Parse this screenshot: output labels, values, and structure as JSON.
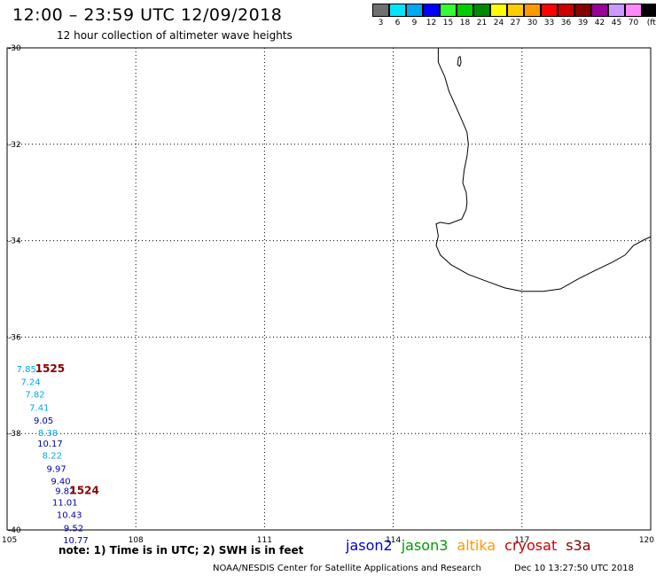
{
  "header": {
    "title": "12:00 – 23:59 UTC 12/09/2018",
    "subtitle": "12 hour collection of altimeter wave heights"
  },
  "legend": {
    "unit": "(ft)",
    "items": [
      {
        "label": "3",
        "color": "#707070"
      },
      {
        "label": "6",
        "color": "#00e5ff"
      },
      {
        "label": "9",
        "color": "#00a8f0"
      },
      {
        "label": "12",
        "color": "#0000ff"
      },
      {
        "label": "15",
        "color": "#33ff33"
      },
      {
        "label": "18",
        "color": "#00cc00"
      },
      {
        "label": "21",
        "color": "#008800"
      },
      {
        "label": "24",
        "color": "#ffff00"
      },
      {
        "label": "27",
        "color": "#ffcc00"
      },
      {
        "label": "30",
        "color": "#ff9900"
      },
      {
        "label": "33",
        "color": "#ff0000"
      },
      {
        "label": "36",
        "color": "#cc0000"
      },
      {
        "label": "39",
        "color": "#880000"
      },
      {
        "label": "42",
        "color": "#990099"
      },
      {
        "label": "45",
        "color": "#cc99ff"
      },
      {
        "label": "70",
        "color": "#ff88ff"
      },
      {
        "label": "",
        "color": "#000000"
      }
    ]
  },
  "axes": {
    "lon_ticks": [
      "105",
      "108",
      "111",
      "114",
      "117",
      "120"
    ],
    "lat_ticks": [
      "-30",
      "-32",
      "-34",
      "-36",
      "-38",
      "-40"
    ]
  },
  "observations": [
    {
      "value": "7.85",
      "lon": 105.45,
      "lat": -36.65,
      "color": "#00a8f0"
    },
    {
      "value": "7.24",
      "lon": 105.55,
      "lat": -36.92,
      "color": "#00a8f0"
    },
    {
      "value": "7.82",
      "lon": 105.65,
      "lat": -37.18,
      "color": "#00a8f0"
    },
    {
      "value": "7.41",
      "lon": 105.75,
      "lat": -37.45,
      "color": "#00a8f0"
    },
    {
      "value": "9.05",
      "lon": 105.85,
      "lat": -37.72,
      "color": "#0000aa"
    },
    {
      "value": "8.38",
      "lon": 105.95,
      "lat": -37.98,
      "color": "#00a8f0"
    },
    {
      "value": "10.17",
      "lon": 106.0,
      "lat": -38.2,
      "color": "#0000aa"
    },
    {
      "value": "8.22",
      "lon": 106.05,
      "lat": -38.45,
      "color": "#00a8f0"
    },
    {
      "value": "9.97",
      "lon": 106.15,
      "lat": -38.72,
      "color": "#0000aa"
    },
    {
      "value": "9.40",
      "lon": 106.25,
      "lat": -38.98,
      "color": "#0000aa"
    },
    {
      "value": "9.82",
      "lon": 106.35,
      "lat": -39.18,
      "color": "#0000aa"
    },
    {
      "value": "11.01",
      "lon": 106.35,
      "lat": -39.42,
      "color": "#0000aa"
    },
    {
      "value": "10.43",
      "lon": 106.45,
      "lat": -39.68,
      "color": "#0000aa"
    },
    {
      "value": "9.52",
      "lon": 106.55,
      "lat": -39.95,
      "color": "#0000aa"
    },
    {
      "value": "10.77",
      "lon": 106.6,
      "lat": -40.2,
      "color": "#0000aa"
    }
  ],
  "pass_labels": [
    {
      "label": "1525",
      "lon": 106.0,
      "lat": -36.65,
      "color": "#880000"
    },
    {
      "label": "1524",
      "lon": 106.8,
      "lat": -39.18,
      "color": "#880000"
    }
  ],
  "coastline": {
    "mainland": [
      [
        115.05,
        -30.0
      ],
      [
        115.05,
        -30.3
      ],
      [
        115.2,
        -30.6
      ],
      [
        115.3,
        -30.9
      ],
      [
        115.45,
        -31.2
      ],
      [
        115.6,
        -31.5
      ],
      [
        115.72,
        -31.75
      ],
      [
        115.75,
        -32.0
      ],
      [
        115.72,
        -32.25
      ],
      [
        115.65,
        -32.55
      ],
      [
        115.62,
        -32.8
      ],
      [
        115.7,
        -33.0
      ],
      [
        115.72,
        -33.2
      ],
      [
        115.7,
        -33.35
      ],
      [
        115.6,
        -33.55
      ],
      [
        115.3,
        -33.65
      ],
      [
        115.1,
        -33.62
      ],
      [
        115.0,
        -33.65
      ],
      [
        115.05,
        -33.9
      ],
      [
        115.0,
        -34.1
      ],
      [
        115.1,
        -34.3
      ],
      [
        115.35,
        -34.5
      ],
      [
        115.75,
        -34.7
      ],
      [
        116.2,
        -34.85
      ],
      [
        116.6,
        -34.98
      ],
      [
        117.0,
        -35.05
      ],
      [
        117.5,
        -35.05
      ],
      [
        117.9,
        -35.0
      ],
      [
        118.3,
        -34.8
      ],
      [
        118.7,
        -34.62
      ],
      [
        119.1,
        -34.45
      ],
      [
        119.4,
        -34.3
      ],
      [
        119.6,
        -34.1
      ],
      [
        119.85,
        -33.98
      ],
      [
        120.0,
        -33.92
      ]
    ],
    "islands": [
      [
        [
          115.52,
          -30.2
        ],
        [
          115.56,
          -30.18
        ],
        [
          115.58,
          -30.3
        ],
        [
          115.55,
          -30.38
        ],
        [
          115.5,
          -30.35
        ],
        [
          115.52,
          -30.2
        ]
      ]
    ]
  },
  "footer": {
    "note": "note:  1) Time is in UTC;  2) SWH is in feet",
    "satellites": [
      {
        "name": "jason2",
        "color": "#0000cc"
      },
      {
        "name": "jason3",
        "color": "#009900"
      },
      {
        "name": "altika",
        "color": "#ff9900"
      },
      {
        "name": "cryosat",
        "color": "#cc0000"
      },
      {
        "name": "s3a",
        "color": "#880000"
      }
    ],
    "credit": "NOAA/NESDIS Center for Satellite Applications and Research",
    "timestamp": "Dec 10 13:27:50 UTC 2018"
  }
}
